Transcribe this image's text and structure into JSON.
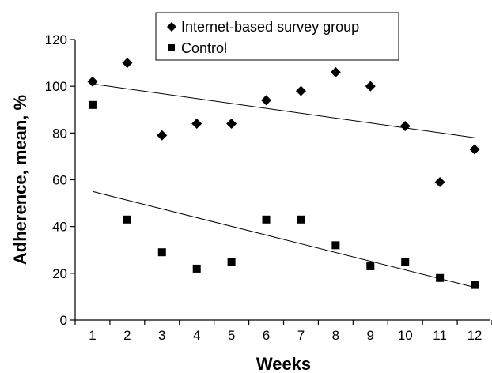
{
  "chart_data": {
    "type": "scatter",
    "title": "",
    "xlabel": "Weeks",
    "ylabel": "Adherence, mean, %",
    "xlim": [
      0.5,
      12.5
    ],
    "ylim": [
      0,
      120
    ],
    "xticks": [
      1,
      2,
      3,
      4,
      5,
      6,
      7,
      8,
      9,
      10,
      11,
      12
    ],
    "yticks": [
      0,
      20,
      40,
      60,
      80,
      100,
      120
    ],
    "grid": false,
    "legend_position": "top-center",
    "series": [
      {
        "name": "Internet-based survey group",
        "marker": "diamond",
        "color": "#000000",
        "x": [
          1,
          2,
          3,
          4,
          5,
          6,
          7,
          8,
          9,
          10,
          11,
          12
        ],
        "y": [
          102,
          110,
          79,
          84,
          84,
          94,
          98,
          106,
          100,
          83,
          59,
          73
        ],
        "trendline": {
          "x": [
            1,
            12
          ],
          "y": [
            101,
            78
          ]
        }
      },
      {
        "name": "Control",
        "marker": "square",
        "color": "#000000",
        "x": [
          1,
          2,
          3,
          4,
          5,
          6,
          7,
          8,
          9,
          10,
          11,
          12
        ],
        "y": [
          92,
          43,
          29,
          22,
          25,
          43,
          43,
          32,
          23,
          25,
          18,
          15
        ],
        "trendline": {
          "x": [
            1,
            12
          ],
          "y": [
            55,
            14
          ]
        }
      }
    ]
  }
}
